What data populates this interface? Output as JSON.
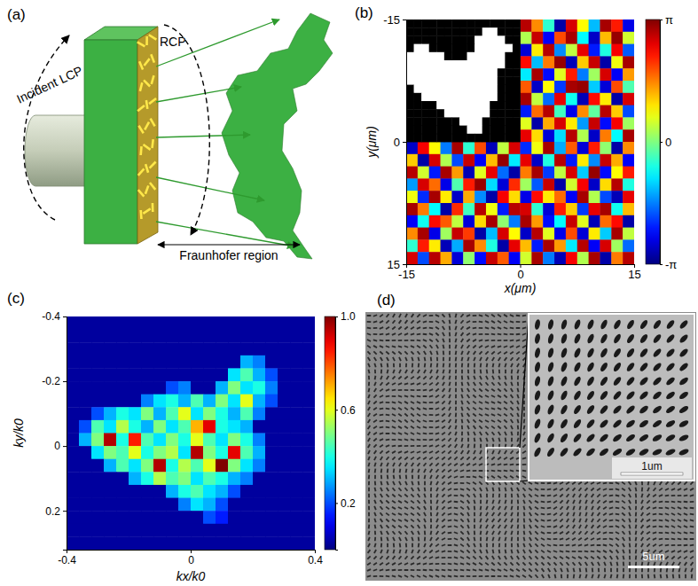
{
  "diagram": {
    "label": "(a)",
    "incident": "Incident LCP",
    "output": "RCP",
    "region": "Fraunhofer region"
  },
  "chart_data": [
    {
      "type": "heatmap",
      "title": "(b)",
      "x_label": "x(μm)",
      "y_label": "y(μm)",
      "color": "jet",
      "xlim": [
        -15,
        15
      ],
      "ylim": [
        -15,
        15
      ],
      "xticks": [
        -15,
        0,
        15
      ],
      "yticks": [
        -15,
        0,
        15
      ],
      "x_edges": [
        -15,
        -13.5,
        -12,
        -10.5,
        -9,
        -7.5,
        -6,
        -4.5,
        -3,
        -1.5,
        0,
        1.5,
        3,
        4.5,
        6,
        7.5,
        9,
        10.5,
        12,
        13.5,
        15
      ],
      "y_edges": [
        -15,
        -13.5,
        -12,
        -10.5,
        -9,
        -7.5,
        -6,
        -4.5,
        -3,
        -1.5,
        0,
        1.5,
        3,
        4.5,
        6,
        7.5,
        9,
        10.5,
        12,
        13.5,
        15
      ],
      "values": [
        [
          null,
          null,
          null,
          null,
          null,
          null,
          null,
          null,
          null,
          null,
          2.8,
          1.5,
          -0.5,
          -2.9,
          2.6,
          0.8,
          -1.2,
          2.9,
          2.2,
          -2.5
        ],
        [
          null,
          null,
          null,
          null,
          null,
          null,
          null,
          null,
          null,
          null,
          0.3,
          2.7,
          -2.4,
          1.9,
          2.9,
          -0.8,
          -2.7,
          1.2,
          3.0,
          0.5
        ],
        [
          null,
          null,
          null,
          null,
          null,
          null,
          null,
          null,
          null,
          null,
          -2.6,
          0.9,
          2.8,
          -1.5,
          0.4,
          2.5,
          -2.2,
          -0.6,
          2.4,
          -1.8
        ],
        [
          null,
          null,
          null,
          null,
          null,
          null,
          null,
          null,
          null,
          null,
          2.3,
          -1.2,
          1.6,
          3.0,
          -2.8,
          1.1,
          2.7,
          -2.9,
          0.7,
          2.9
        ],
        [
          null,
          null,
          null,
          null,
          null,
          null,
          null,
          null,
          null,
          null,
          -0.9,
          2.9,
          -2.3,
          0.6,
          2.2,
          -1.6,
          0.2,
          2.6,
          -2.4,
          1.4
        ],
        [
          null,
          null,
          null,
          null,
          null,
          null,
          null,
          null,
          null,
          null,
          1.8,
          -2.7,
          0.8,
          -2.0,
          2.9,
          3.0,
          -1.1,
          -2.6,
          1.9,
          -0.3
        ],
        [
          null,
          null,
          null,
          null,
          null,
          null,
          null,
          null,
          null,
          null,
          2.9,
          0.4,
          -1.7,
          2.5,
          -0.7,
          -2.8,
          2.3,
          0.9,
          -2.9,
          2.6
        ],
        [
          null,
          null,
          null,
          null,
          null,
          null,
          null,
          null,
          null,
          null,
          -2.2,
          1.7,
          2.8,
          -0.4,
          -2.5,
          1.5,
          -0.2,
          2.8,
          1.1,
          -1.9
        ],
        [
          null,
          null,
          null,
          null,
          null,
          null,
          null,
          null,
          null,
          null,
          0.6,
          -2.9,
          1.3,
          2.6,
          0.9,
          -1.4,
          2.7,
          -2.3,
          2.4,
          0.2
        ],
        [
          null,
          null,
          null,
          null,
          null,
          null,
          null,
          null,
          null,
          null,
          2.5,
          1.0,
          -2.6,
          -1.0,
          2.8,
          0.3,
          -2.7,
          1.6,
          -0.8,
          2.9
        ],
        [
          -2.7,
          2.4,
          0.8,
          -1.6,
          2.9,
          -0.5,
          1.9,
          -2.8,
          0.4,
          2.6,
          -2.1,
          0.7,
          2.9,
          -1.3,
          1.8,
          -2.6,
          2.2,
          0.1,
          -2.9,
          1.5
        ],
        [
          1.1,
          -2.9,
          2.6,
          0.3,
          -1.9,
          2.7,
          -2.4,
          1.2,
          3.0,
          -0.9,
          2.5,
          -2.7,
          -0.6,
          2.8,
          -2.2,
          0.9,
          -1.5,
          2.7,
          1.3,
          -2.4
        ],
        [
          2.8,
          0.5,
          -2.2,
          2.9,
          1.4,
          -2.8,
          0.6,
          2.5,
          -1.7,
          -2.9,
          1.6,
          2.9,
          -2.0,
          0.4,
          2.6,
          -1.1,
          3.0,
          -2.3,
          0.8,
          2.2
        ],
        [
          -1.4,
          2.6,
          1.7,
          -2.5,
          -0.3,
          2.2,
          3.0,
          -1.0,
          -2.6,
          2.1,
          0.2,
          -1.8,
          2.7,
          -2.9,
          0.5,
          2.4,
          -2.7,
          1.0,
          2.8,
          -0.6
        ],
        [
          0.7,
          -2.1,
          2.9,
          0.9,
          -2.7,
          1.3,
          -1.5,
          -2.9,
          2.4,
          1.0,
          -2.5,
          2.3,
          0.9,
          1.7,
          -2.4,
          2.9,
          0.3,
          -1.9,
          -2.8,
          2.5
        ],
        [
          2.9,
          1.6,
          -0.8,
          -2.9,
          2.1,
          -0.4,
          2.8,
          0.7,
          -2.2,
          2.8,
          2.6,
          -0.5,
          -2.6,
          2.2,
          1.1,
          -2.0,
          2.5,
          2.9,
          -0.7,
          1.2
        ],
        [
          -2.4,
          -0.7,
          2.3,
          1.8,
          0.4,
          -2.6,
          1.0,
          2.9,
          0.1,
          -1.6,
          2.9,
          1.4,
          -2.3,
          -0.8,
          2.7,
          0.6,
          -2.8,
          1.7,
          2.3,
          -2.9
        ],
        [
          1.5,
          2.9,
          -2.5,
          0.2,
          2.7,
          2.0,
          -2.9,
          -1.2,
          2.6,
          0.8,
          -2.7,
          2.8,
          0.6,
          -2.5,
          1.9,
          -2.6,
          0.9,
          -1.1,
          2.9,
          0.4
        ],
        [
          -0.5,
          2.2,
          0.9,
          -2.8,
          -1.3,
          2.9,
          1.5,
          -0.6,
          -2.9,
          2.5,
          1.2,
          -2.2,
          2.9,
          1.4,
          -0.9,
          2.8,
          -2.4,
          2.6,
          0.2,
          -1.7
        ],
        [
          2.6,
          -1.9,
          2.8,
          1.3,
          -2.6,
          0.1,
          -2.3,
          2.7,
          1.8,
          -2.4,
          0.5,
          2.9,
          -1.6,
          -2.8,
          2.4,
          0.3,
          2.9,
          -2.9,
          1.6,
          2.8
        ]
      ],
      "colorbar": {
        "range": [
          -3.1416,
          3.1416
        ],
        "ticks": [
          {
            "value": -3.1416,
            "label": "-π"
          },
          0,
          {
            "value": 3.1416,
            "label": "π"
          }
        ]
      },
      "inset": {
        "x_edges": [
          -15,
          -14,
          -13,
          -12,
          -11,
          -10,
          -9,
          -8,
          -7,
          -6,
          -5,
          -4,
          -3,
          -2,
          -1,
          0
        ],
        "y_edges": [
          -15,
          -14,
          -13,
          -12,
          -11,
          -10,
          -9,
          -8,
          -7,
          -6,
          -5,
          -4,
          -3,
          -2,
          -1,
          0
        ],
        "values": [
          [
            0,
            0,
            0,
            0,
            0,
            0,
            0,
            0,
            0,
            0,
            0,
            0,
            0,
            0,
            0
          ],
          [
            0,
            0,
            0,
            0,
            0,
            0,
            0,
            0,
            0,
            0,
            1,
            1,
            0,
            0,
            0
          ],
          [
            0,
            0,
            0,
            0,
            0,
            0,
            0,
            0,
            0,
            1,
            1,
            1,
            1,
            0,
            0
          ],
          [
            0,
            1,
            1,
            0,
            0,
            0,
            0,
            0,
            0,
            1,
            1,
            1,
            1,
            1,
            0
          ],
          [
            1,
            1,
            1,
            1,
            1,
            0,
            0,
            0,
            1,
            1,
            1,
            1,
            1,
            0,
            0
          ],
          [
            1,
            1,
            1,
            1,
            1,
            1,
            1,
            1,
            1,
            1,
            1,
            1,
            1,
            0,
            0
          ],
          [
            1,
            1,
            1,
            1,
            1,
            1,
            1,
            1,
            1,
            1,
            1,
            1,
            0,
            0,
            0
          ],
          [
            1,
            1,
            1,
            1,
            1,
            1,
            1,
            1,
            1,
            1,
            1,
            1,
            0,
            0,
            0
          ],
          [
            0,
            1,
            1,
            1,
            1,
            1,
            1,
            1,
            1,
            1,
            1,
            1,
            0,
            0,
            0
          ],
          [
            0,
            0,
            1,
            1,
            1,
            1,
            1,
            1,
            1,
            1,
            1,
            1,
            0,
            0,
            0
          ],
          [
            0,
            0,
            0,
            0,
            1,
            1,
            1,
            1,
            1,
            1,
            1,
            0,
            0,
            0,
            0
          ],
          [
            0,
            0,
            0,
            0,
            0,
            1,
            1,
            1,
            1,
            1,
            1,
            0,
            0,
            0,
            0
          ],
          [
            0,
            0,
            0,
            0,
            0,
            0,
            0,
            1,
            1,
            1,
            0,
            0,
            0,
            0,
            0
          ],
          [
            0,
            0,
            0,
            0,
            0,
            0,
            0,
            0,
            1,
            1,
            0,
            0,
            0,
            0,
            0
          ],
          [
            0,
            0,
            0,
            0,
            0,
            0,
            0,
            0,
            0,
            0,
            0,
            0,
            0,
            0,
            0
          ]
        ]
      }
    },
    {
      "type": "heatmap",
      "title": "(c)",
      "x_label": "kx/k0",
      "y_label": "ky/k0",
      "color": "jet",
      "xlim": [
        -0.4,
        0.4
      ],
      "ylim": [
        -0.4,
        0.32
      ],
      "xticks": [
        -0.4,
        0,
        0.4
      ],
      "yticks": [
        -0.4,
        -0.2,
        0,
        0.2
      ],
      "x_edges": [
        -0.4,
        -0.36,
        -0.32,
        -0.28,
        -0.24,
        -0.2,
        -0.16,
        -0.12,
        -0.08,
        -0.04,
        0,
        0.04,
        0.08,
        0.12,
        0.16,
        0.2,
        0.24,
        0.28,
        0.32,
        0.36,
        0.4
      ],
      "y_edges": [
        -0.4,
        -0.36,
        -0.32,
        -0.28,
        -0.24,
        -0.2,
        -0.16,
        -0.12,
        -0.08,
        -0.04,
        0,
        0.04,
        0.08,
        0.12,
        0.16,
        0.2,
        0.24,
        0.28,
        0.32
      ],
      "values": [
        [
          0.03,
          0.03,
          0.03,
          0.03,
          0.03,
          0.03,
          0.03,
          0.03,
          0.03,
          0.03,
          0.03,
          0.03,
          0.03,
          0.03,
          0.03,
          0.03,
          0.03,
          0.03,
          0.03,
          0.03
        ],
        [
          0.03,
          0.03,
          0.03,
          0.03,
          0.03,
          0.03,
          0.03,
          0.03,
          0.03,
          0.03,
          0.03,
          0.03,
          0.03,
          0.03,
          0.03,
          0.03,
          0.03,
          0.03,
          0.03,
          0.03
        ],
        [
          0.03,
          0.03,
          0.03,
          0.03,
          0.03,
          0.03,
          0.03,
          0.03,
          0.03,
          0.03,
          0.03,
          0.03,
          0.03,
          0.03,
          0.03,
          0.03,
          0.03,
          0.03,
          0.03,
          0.03
        ],
        [
          0.03,
          0.03,
          0.03,
          0.03,
          0.03,
          0.03,
          0.03,
          0.03,
          0.03,
          0.03,
          0.03,
          0.03,
          0.03,
          0.03,
          0.3,
          0.25,
          0.03,
          0.03,
          0.03,
          0.03
        ],
        [
          0.03,
          0.03,
          0.03,
          0.03,
          0.03,
          0.03,
          0.03,
          0.03,
          0.03,
          0.03,
          0.03,
          0.03,
          0.03,
          0.35,
          0.45,
          0.3,
          0.2,
          0.03,
          0.03,
          0.03
        ],
        [
          0.03,
          0.03,
          0.03,
          0.03,
          0.03,
          0.03,
          0.03,
          0.03,
          0.2,
          0.25,
          0.03,
          0.03,
          0.3,
          0.5,
          0.35,
          0.4,
          0.25,
          0.03,
          0.03,
          0.03
        ],
        [
          0.03,
          0.03,
          0.03,
          0.03,
          0.03,
          0.03,
          0.25,
          0.35,
          0.4,
          0.3,
          0.45,
          0.3,
          0.5,
          0.35,
          0.6,
          0.3,
          0.2,
          0.03,
          0.03,
          0.03
        ],
        [
          0.03,
          0.03,
          0.2,
          0.3,
          0.4,
          0.35,
          0.5,
          0.3,
          0.45,
          0.6,
          0.35,
          0.5,
          0.4,
          0.3,
          0.45,
          0.25,
          0.03,
          0.03,
          0.03,
          0.03
        ],
        [
          0.03,
          0.2,
          0.45,
          0.35,
          0.55,
          0.4,
          0.3,
          0.5,
          0.35,
          0.45,
          0.7,
          0.9,
          0.4,
          0.35,
          0.3,
          0.03,
          0.03,
          0.03,
          0.03,
          0.03
        ],
        [
          0.03,
          0.3,
          0.5,
          0.95,
          0.4,
          0.85,
          0.45,
          0.35,
          0.5,
          0.4,
          0.6,
          0.45,
          0.35,
          0.5,
          0.4,
          0.25,
          0.03,
          0.03,
          0.03,
          0.03
        ],
        [
          0.03,
          0.03,
          0.35,
          0.5,
          0.45,
          0.6,
          0.4,
          0.5,
          0.55,
          0.35,
          0.95,
          0.5,
          0.4,
          0.9,
          0.45,
          0.3,
          0.03,
          0.03,
          0.03,
          0.03
        ],
        [
          0.03,
          0.03,
          0.03,
          0.3,
          0.45,
          0.35,
          0.5,
          0.95,
          0.4,
          0.55,
          0.45,
          0.6,
          1,
          0.5,
          0.35,
          0.25,
          0.03,
          0.03,
          0.03,
          0.03
        ],
        [
          0.03,
          0.03,
          0.03,
          0.03,
          0.03,
          0.3,
          0.4,
          0.55,
          0.45,
          0.5,
          0.35,
          0.45,
          0.4,
          0.3,
          0.25,
          0.03,
          0.03,
          0.03,
          0.03,
          0.03
        ],
        [
          0.03,
          0.03,
          0.03,
          0.03,
          0.03,
          0.03,
          0.03,
          0.03,
          0.3,
          0.4,
          0.45,
          0.35,
          0.3,
          0.2,
          0.03,
          0.03,
          0.03,
          0.03,
          0.03,
          0.03
        ],
        [
          0.03,
          0.03,
          0.03,
          0.03,
          0.03,
          0.03,
          0.03,
          0.03,
          0.03,
          0.25,
          0.35,
          0.3,
          0.2,
          0.03,
          0.03,
          0.03,
          0.03,
          0.03,
          0.03,
          0.03
        ],
        [
          0.03,
          0.03,
          0.03,
          0.03,
          0.03,
          0.03,
          0.03,
          0.03,
          0.03,
          0.03,
          0.03,
          0.2,
          0.15,
          0.03,
          0.03,
          0.03,
          0.03,
          0.03,
          0.03,
          0.03
        ],
        [
          0.03,
          0.03,
          0.03,
          0.03,
          0.03,
          0.03,
          0.03,
          0.03,
          0.03,
          0.03,
          0.03,
          0.03,
          0.03,
          0.03,
          0.03,
          0.03,
          0.03,
          0.03,
          0.03,
          0.03
        ],
        [
          0.03,
          0.03,
          0.03,
          0.03,
          0.03,
          0.03,
          0.03,
          0.03,
          0.03,
          0.03,
          0.03,
          0.03,
          0.03,
          0.03,
          0.03,
          0.03,
          0.03,
          0.03,
          0.03,
          0.03
        ]
      ],
      "colorbar": {
        "range": [
          0,
          1
        ],
        "ticks": [
          0.2,
          0.6,
          {
            "value": 1,
            "label": "1.0"
          }
        ]
      }
    }
  ],
  "image": {
    "label": "(d)",
    "scale_bar": "5um",
    "inset_scale_bar": "1um"
  }
}
